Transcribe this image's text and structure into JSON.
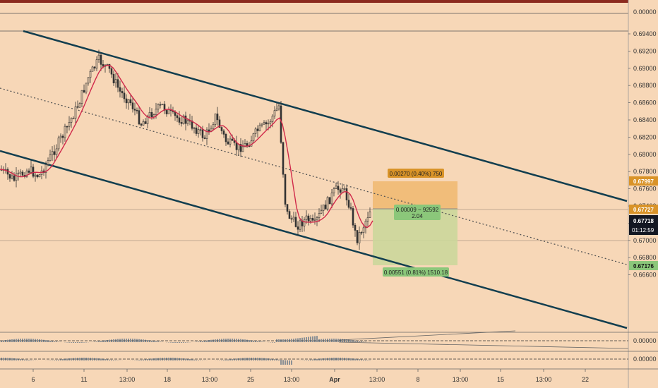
{
  "colors": {
    "background": "#f7d7b7",
    "channel": "#123e4f",
    "candle": "#333333",
    "ma": "#d0294a",
    "profit_zone": "#c9d79a",
    "loss_zone": "#f0b870",
    "profit_tag": "#8bc77a",
    "loss_tag": "#d99328",
    "price_tag_dark": "#131722",
    "top_strip": "#8b2a1e"
  },
  "price_axis": {
    "ticks": [
      "0.69400",
      "0.69200",
      "0.69000",
      "0.68800",
      "0.68600",
      "0.68400",
      "0.68200",
      "0.68000",
      "0.67800",
      "0.67600",
      "0.67400",
      "0.67200",
      "0.67000",
      "0.66800",
      "0.66600"
    ],
    "top_indicator_value": "0.00000",
    "tags": {
      "take_profit": "0.67997",
      "current": "0.67727",
      "last": "0.67718",
      "countdown": "01:12:59",
      "stop_loss": "0.67176"
    }
  },
  "indicator_axis": {
    "panel1_value": "0.00000",
    "panel2_value": "0.00000"
  },
  "time_axis": {
    "labels": [
      "6",
      "11",
      "13:00",
      "18",
      "13:00",
      "25",
      "13:00",
      "Apr",
      "13:00",
      "8",
      "13:00",
      "15",
      "13:00",
      "22"
    ]
  },
  "position_tool": {
    "target_label": "0.00270 (0.40%) 750",
    "center_label_line1": "0.00009 ~ 92592",
    "center_label_line2": "2.04",
    "stop_label": "0.00551 (0.81%) 1510.18"
  }
}
